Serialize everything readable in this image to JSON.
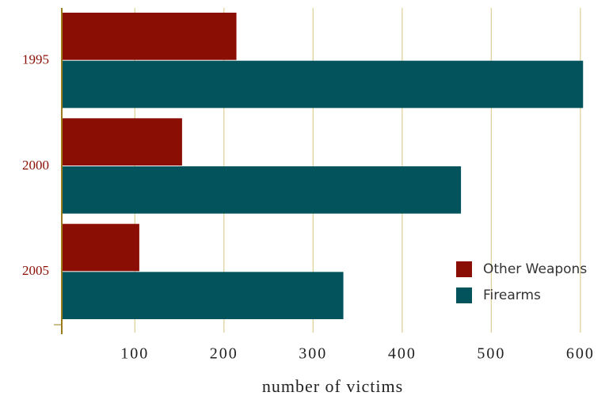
{
  "chart_data": {
    "type": "barh",
    "categories": [
      "1995",
      "2000",
      "2005"
    ],
    "series": [
      {
        "name": "Other Weapons",
        "color": "#8b0e04",
        "values": [
          214,
          153,
          105
        ]
      },
      {
        "name": "Firearms",
        "color": "#03535d",
        "values": [
          603,
          466,
          334
        ]
      }
    ],
    "x_label": "number of victims",
    "xlim": [
      18,
      625
    ],
    "xticks": [
      100,
      200,
      300,
      400,
      500,
      600
    ],
    "grid": true,
    "legend": "lower right"
  }
}
